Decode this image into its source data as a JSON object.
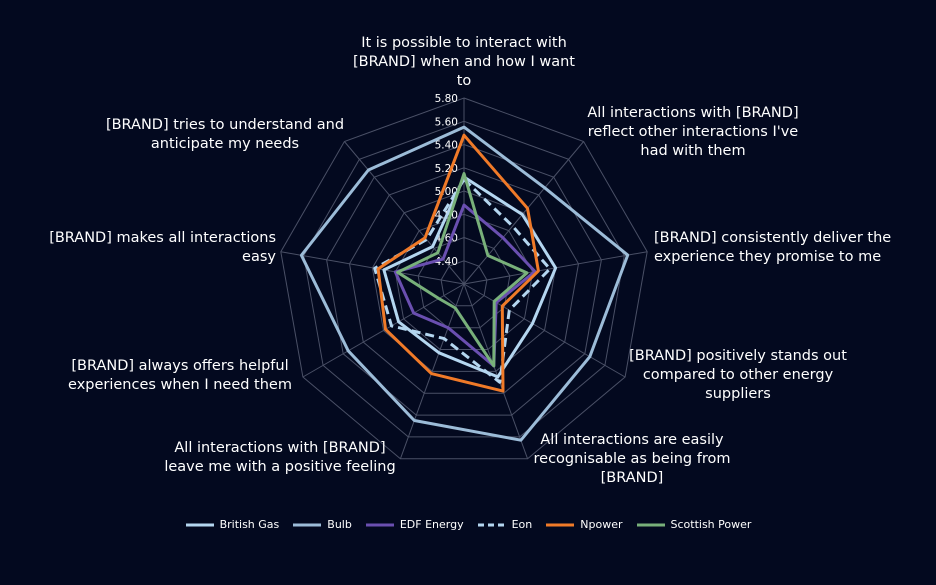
{
  "chart_data": {
    "type": "radar",
    "title": "",
    "axes": [
      "It is possible to interact with [BRAND] when and how I want to",
      "All interactions with [BRAND] reflect other interactions I've had with them",
      "[BRAND] consistently deliver the experience they promise to me",
      "[BRAND] positively stands out compared to other energy suppliers",
      "All interactions are easily recognisable as being from [BRAND]",
      "All interactions with [BRAND] leave me with a positive feeling",
      "[BRAND] always offers helpful experiences when I need them",
      "[BRAND] makes all interactions easy",
      "[BRAND] tries to understand and anticipate my needs"
    ],
    "axis_label_lines": [
      [
        "It is possible to interact with",
        "[BRAND] when and how I want",
        "to"
      ],
      [
        "All interactions with [BRAND]",
        "reflect other interactions I've",
        "had with them"
      ],
      [
        "[BRAND] consistently deliver the",
        "experience they promise to me"
      ],
      [
        "[BRAND] positively stands out",
        "compared to other energy",
        "suppliers"
      ],
      [
        "All interactions are easily",
        "recognisable as being from",
        "[BRAND]"
      ],
      [
        "All interactions with [BRAND]",
        "leave me with a positive feeling"
      ],
      [
        "[BRAND] always offers helpful",
        "experiences when I need them"
      ],
      [
        "[BRAND] makes all interactions",
        "easy"
      ],
      [
        "[BRAND] tries to understand and",
        "anticipate my needs"
      ]
    ],
    "rmin": 4.2,
    "rmax": 5.8,
    "tick_values": [
      4.4,
      4.6,
      4.8,
      5.0,
      5.2,
      5.4,
      5.6,
      5.8
    ],
    "tick_labels": [
      "4.40",
      "4.60",
      "4.80",
      "5.00",
      "5.20",
      "5.40",
      "5.60",
      "5.80"
    ],
    "grid": true,
    "legend_position": "bottom",
    "series": [
      {
        "name": "British Gas",
        "color": "#b4d6f0",
        "dash": "solid",
        "values": [
          5.12,
          4.98,
          5.0,
          4.88,
          5.05,
          4.83,
          4.85,
          4.9,
          4.62
        ]
      },
      {
        "name": "Bulb",
        "color": "#9cbcd8",
        "dash": "solid",
        "values": [
          5.55,
          5.28,
          5.63,
          5.45,
          5.63,
          5.45,
          5.35,
          5.62,
          5.48
        ]
      },
      {
        "name": "EDF Energy",
        "color": "#6a4fb0",
        "dash": "solid",
        "values": [
          4.88,
          4.72,
          4.82,
          4.52,
          4.95,
          4.6,
          4.7,
          4.8,
          4.48
        ]
      },
      {
        "name": "Eon",
        "color": "#b4d6f0",
        "dash": "dashed",
        "values": [
          5.1,
          4.85,
          4.95,
          4.65,
          5.1,
          4.7,
          4.92,
          4.98,
          4.7
        ]
      },
      {
        "name": "Npower",
        "color": "#f07a28",
        "dash": "solid",
        "values": [
          5.48,
          5.05,
          4.85,
          4.58,
          5.18,
          5.02,
          4.98,
          4.95,
          4.72
        ]
      },
      {
        "name": "Scottish Power",
        "color": "#78b07a",
        "dash": "solid",
        "values": [
          5.15,
          4.52,
          4.75,
          4.5,
          4.95,
          4.42,
          4.45,
          4.78,
          4.55
        ]
      }
    ]
  }
}
